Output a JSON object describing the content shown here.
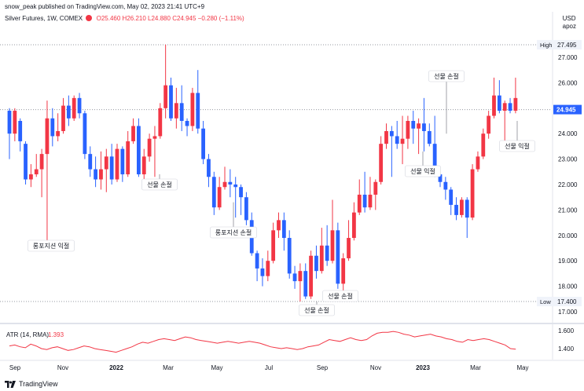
{
  "header": {
    "publish_line": "snow_peak published on TradingView.com, May 02, 2023 21:41 UTC+9"
  },
  "legend": {
    "symbol": "Silver Futures, 1W, COMEX",
    "open": "O25.460",
    "high": "H26.210",
    "low": "L24.880",
    "close": "C24.945",
    "change": "−0.280 (−1.11%)"
  },
  "price_axis": {
    "currency": "USD",
    "unit": "apoz",
    "ticks": [
      "27.000",
      "26.000",
      "25.000",
      "24.000",
      "23.000",
      "22.000",
      "21.000",
      "20.000",
      "19.000",
      "18.000",
      "17.000"
    ],
    "high_label": "High",
    "high_value": "27.495",
    "low_label": "Low",
    "low_value": "17.400",
    "last_value": "24.945"
  },
  "time_axis": {
    "labels": [
      "Sep",
      "Nov",
      "2022",
      "Mar",
      "May",
      "Jul",
      "Sep",
      "Nov",
      "2023",
      "Mar",
      "May"
    ]
  },
  "annotations": [
    "롱포지션 익절",
    "선물 손절",
    "롱포지션 손절",
    "선물 손절",
    "선물 손절",
    "선물 손절",
    "선물 익절",
    "선물 익절"
  ],
  "indicator": {
    "name": "ATR (14, RMA)",
    "value": "1.393",
    "ticks": [
      "1.600",
      "1.400"
    ]
  },
  "footer": {
    "brand": "TradingView"
  },
  "colors": {
    "up": "#f23645",
    "down": "#2962ff",
    "axis_text": "#131722",
    "grid_dotted": "#787b86"
  }
}
